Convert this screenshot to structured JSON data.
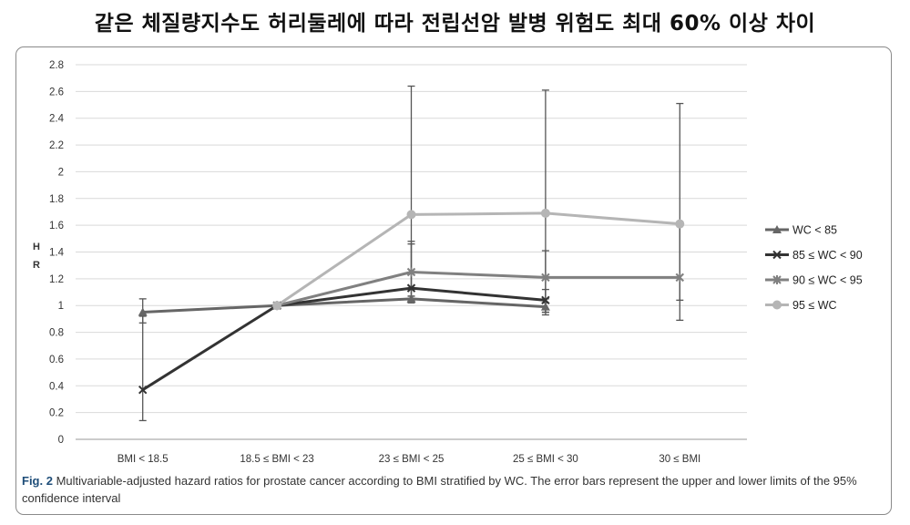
{
  "headline": "같은 체질량지수도 허리둘레에 따라 전립선암 발병 위험도 최대 60% 이상 차이",
  "caption": {
    "label": "Fig. 2",
    "text": " Multivariable-adjusted hazard ratios for prostate cancer according to BMI stratified by WC. The error bars represent the upper and lower limits of the 95% confidence interval"
  },
  "chart_data": {
    "type": "line",
    "ylabel": "HR",
    "ylim": [
      0,
      2.8
    ],
    "yticks": [
      "0",
      "0.2",
      "0.4",
      "0.6",
      "0.8",
      "1",
      "1.2",
      "1.4",
      "1.6",
      "1.8",
      "2",
      "2.2",
      "2.4",
      "2.6",
      "2.8"
    ],
    "grid": true,
    "legend_position": "right",
    "categories": [
      "BMI < 18.5",
      "18.5 ≤ BMI < 23",
      "23 ≤ BMI < 25",
      "25 ≤ BMI < 30",
      "30 ≤ BMI"
    ],
    "series": [
      {
        "name": "WC < 85",
        "color": "#666666",
        "marker": "triangle",
        "values": [
          0.95,
          1.0,
          1.05,
          0.99,
          null
        ],
        "ci_low": [
          0.87,
          null,
          1.03,
          0.93,
          null
        ],
        "ci_high": [
          1.05,
          null,
          1.07,
          1.05,
          null
        ]
      },
      {
        "name": "85 ≤ WC < 90",
        "color": "#333333",
        "marker": "x",
        "values": [
          0.37,
          1.0,
          1.13,
          1.04,
          null
        ],
        "ci_low": [
          0.14,
          null,
          1.02,
          0.95,
          null
        ],
        "ci_high": [
          0.92,
          null,
          1.46,
          1.12,
          null
        ]
      },
      {
        "name": "90 ≤ WC < 95",
        "color": "#808080",
        "marker": "star",
        "values": [
          null,
          1.0,
          1.25,
          1.21,
          1.21
        ],
        "ci_low": [
          null,
          null,
          1.04,
          0.95,
          0.89
        ],
        "ci_high": [
          null,
          null,
          1.48,
          1.41,
          1.61
        ]
      },
      {
        "name": "95 ≤ WC",
        "color": "#b5b5b5",
        "marker": "circle",
        "values": [
          null,
          1.0,
          1.68,
          1.69,
          1.61
        ],
        "ci_low": [
          null,
          null,
          1.07,
          1.02,
          1.04
        ],
        "ci_high": [
          null,
          null,
          2.64,
          2.61,
          2.51
        ]
      }
    ]
  }
}
